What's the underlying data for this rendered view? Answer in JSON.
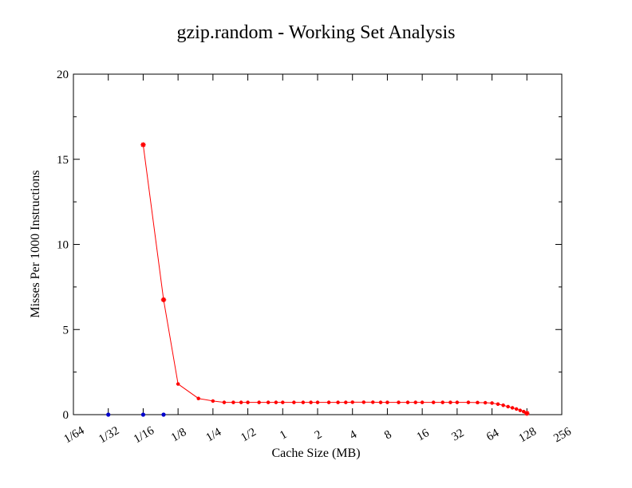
{
  "chart_data": {
    "type": "line",
    "title": "gzip.random - Working Set Analysis",
    "xlabel": "Cache Size (MB)",
    "ylabel": "Misses Per 1000 Instructions",
    "xscale": "log2",
    "xticks": [
      "1/64",
      "1/32",
      "1/16",
      "1/8",
      "1/4",
      "1/2",
      "1",
      "2",
      "4",
      "8",
      "16",
      "32",
      "64",
      "128",
      "256"
    ],
    "xlim": [
      0.015625,
      256
    ],
    "ylim": [
      0,
      20
    ],
    "yticks": [
      "0",
      "5",
      "10",
      "15",
      "20"
    ],
    "grid": false,
    "legend": "none",
    "series": [
      {
        "color": "#ff0000",
        "marker": "star",
        "x": [
          0.0625,
          0.09375,
          0.125,
          0.1875,
          0.25,
          0.3125,
          0.375,
          0.4375,
          0.5,
          0.625,
          0.75,
          0.875,
          1,
          1.25,
          1.5,
          1.75,
          2,
          2.5,
          3,
          3.5,
          4,
          5,
          6,
          7,
          8,
          10,
          12,
          14,
          16,
          20,
          24,
          28,
          32,
          40,
          48,
          56,
          64,
          72,
          80,
          88,
          96,
          104,
          112,
          120,
          128
        ],
        "y": [
          15.85,
          6.75,
          1.8,
          0.95,
          0.8,
          0.72,
          0.72,
          0.72,
          0.72,
          0.72,
          0.72,
          0.72,
          0.72,
          0.72,
          0.72,
          0.72,
          0.72,
          0.72,
          0.72,
          0.72,
          0.73,
          0.73,
          0.73,
          0.72,
          0.72,
          0.72,
          0.72,
          0.72,
          0.72,
          0.72,
          0.72,
          0.72,
          0.72,
          0.72,
          0.71,
          0.7,
          0.68,
          0.62,
          0.55,
          0.47,
          0.4,
          0.33,
          0.25,
          0.18,
          0.08
        ]
      },
      {
        "color": "#0000cc",
        "marker": "dot",
        "connected": false,
        "x": [
          0.03125,
          0.0625,
          0.09375
        ],
        "y": [
          0,
          0,
          0
        ]
      }
    ]
  }
}
